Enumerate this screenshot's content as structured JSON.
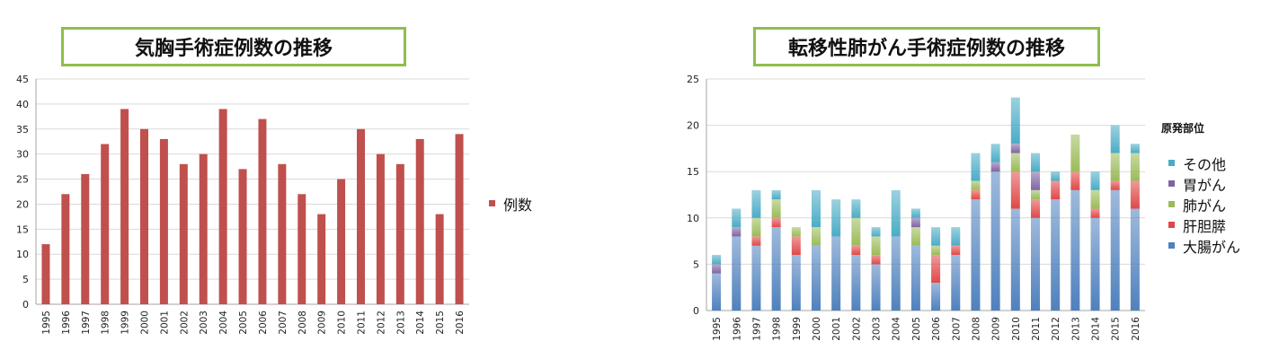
{
  "chart_data": [
    {
      "type": "bar",
      "title": "気胸手術症例数の推移",
      "categories": [
        "1995",
        "1996",
        "1997",
        "1998",
        "1999",
        "2000",
        "2001",
        "2002",
        "2003",
        "2004",
        "2005",
        "2006",
        "2007",
        "2008",
        "2009",
        "2010",
        "2011",
        "2012",
        "2013",
        "2014",
        "2015",
        "2016"
      ],
      "series": [
        {
          "name": "例数",
          "color": "#c0504d",
          "values": [
            12,
            22,
            26,
            32,
            39,
            35,
            33,
            28,
            30,
            39,
            27,
            37,
            28,
            22,
            18,
            25,
            35,
            30,
            28,
            33,
            18,
            34
          ]
        }
      ],
      "ylim": [
        0,
        45
      ],
      "yticks": [
        0,
        5,
        10,
        15,
        20,
        25,
        30,
        35,
        40,
        45
      ],
      "grid": true,
      "legend": "right"
    },
    {
      "type": "bar",
      "stacked": true,
      "title": "転移性肺がん手術症例数の推移",
      "categories": [
        "1995",
        "1996",
        "1997",
        "1998",
        "1999",
        "2000",
        "2001",
        "2002",
        "2003",
        "2004",
        "2005",
        "2006",
        "2007",
        "2008",
        "2009",
        "2010",
        "2011",
        "2012",
        "2013",
        "2014",
        "2015",
        "2016"
      ],
      "legend_title": "原発部位",
      "series": [
        {
          "name": "大腸がん",
          "color": "#4f81bd",
          "values": [
            4,
            8,
            7,
            9,
            6,
            7,
            8,
            6,
            5,
            8,
            7,
            3,
            6,
            12,
            15,
            11,
            10,
            12,
            13,
            10,
            13,
            11
          ]
        },
        {
          "name": "肝胆膵",
          "color": "#e04848",
          "values": [
            0,
            0,
            1,
            1,
            2,
            0,
            0,
            1,
            1,
            0,
            0,
            3,
            1,
            1,
            0,
            4,
            2,
            2,
            2,
            1,
            1,
            3
          ]
        },
        {
          "name": "肺がん",
          "color": "#9bbb59",
          "values": [
            0,
            0,
            2,
            2,
            1,
            2,
            0,
            3,
            2,
            0,
            2,
            1,
            0,
            1,
            0,
            2,
            1,
            0,
            4,
            2,
            3,
            3
          ]
        },
        {
          "name": "胃がん",
          "color": "#8064a2",
          "values": [
            1,
            1,
            0,
            0,
            0,
            0,
            0,
            0,
            0,
            0,
            1,
            0,
            0,
            0,
            1,
            1,
            2,
            0,
            0,
            0,
            0,
            0
          ]
        },
        {
          "name": "その他",
          "color": "#4bacc6",
          "values": [
            1,
            2,
            3,
            1,
            0,
            4,
            4,
            2,
            1,
            5,
            1,
            2,
            2,
            3,
            2,
            5,
            2,
            1,
            0,
            2,
            3,
            1
          ]
        }
      ],
      "ylim": [
        0,
        25
      ],
      "yticks": [
        0,
        5,
        10,
        15,
        20,
        25
      ],
      "grid": true,
      "legend": "right"
    }
  ]
}
